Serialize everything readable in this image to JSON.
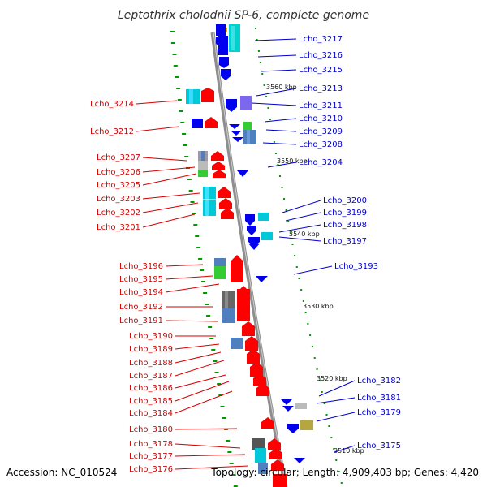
{
  "title": "Leptothrix cholodnii SP-6, complete genome",
  "footer": {
    "accession": "Accession: NC_010524",
    "summary": "Topology: circular; Length: 4,909,403 bp; Genes: 4,420"
  },
  "colors": {
    "forward": "#ff0000",
    "reverse": "#0000ee",
    "backbone": "#888888",
    "cog_cyan": "#00cccc",
    "cog_blue": "#4f7fbf",
    "cog_green": "#33cc33",
    "cog_gray": "#777777",
    "cog_purple": "#7b68ee",
    "cog_olive": "#b5a642",
    "ticks": "#009900"
  },
  "kbp_labels": [
    "3560 kbp",
    "3550 kbp",
    "3540 kbp",
    "3530 kbp",
    "3520 kbp",
    "3510 kbp"
  ],
  "right_labels": [
    "Lcho_3217",
    "Lcho_3216",
    "Lcho_3215",
    "Lcho_3213",
    "Lcho_3211",
    "Lcho_3210",
    "Lcho_3209",
    "Lcho_3208",
    "Lcho_3204",
    "Lcho_3200",
    "Lcho_3199",
    "Lcho_3198",
    "Lcho_3197",
    "Lcho_3193",
    "Lcho_3182",
    "Lcho_3181",
    "Lcho_3179",
    "Lcho_3175"
  ],
  "left_labels": [
    "Lcho_3214",
    "Lcho_3212",
    "Lcho_3207",
    "Lcho_3206",
    "Lcho_3205",
    "Lcho_3203",
    "Lcho_3202",
    "Lcho_3201",
    "Lcho_3196",
    "Lcho_3195",
    "Lcho_3194",
    "Lcho_3192",
    "Lcho_3191",
    "Lcho_3190",
    "Lcho_3189",
    "Lcho_3188",
    "Lcho_3187",
    "Lcho_3186",
    "Lcho_3185",
    "Lcho_3184",
    "Lcho_3180",
    "Lcho_3178",
    "Lcho_3177",
    "Lcho_3176"
  ]
}
